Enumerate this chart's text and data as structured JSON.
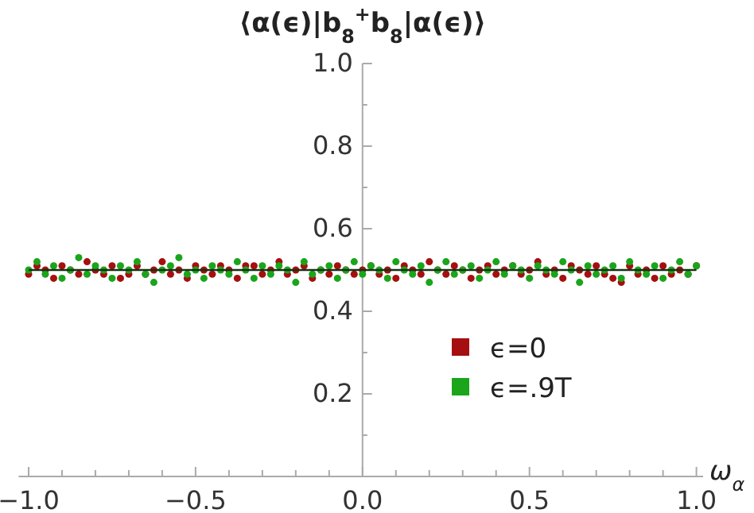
{
  "chart_data": {
    "type": "scatter",
    "ylabel": "⟨α(ϵ)|b$_{8}$$^{+}$b$_{8}$|α(ϵ)⟩",
    "xlabel": "ω$_{α}$",
    "x": [
      -1,
      -0.975,
      -0.95,
      -0.925,
      -0.9,
      -0.875,
      -0.85,
      -0.825,
      -0.8,
      -0.775,
      -0.75,
      -0.725,
      -0.7,
      -0.675,
      -0.65,
      -0.625,
      -0.6,
      -0.575,
      -0.55,
      -0.525,
      -0.5,
      -0.475,
      -0.45,
      -0.425,
      -0.4,
      -0.375,
      -0.35,
      -0.325,
      -0.3,
      -0.275,
      -0.25,
      -0.225,
      -0.2,
      -0.175,
      -0.15,
      -0.125,
      -0.1,
      -0.075,
      -0.05,
      -0.025,
      0,
      0.025,
      0.05,
      0.075,
      0.1,
      0.125,
      0.15,
      0.175,
      0.2,
      0.225,
      0.25,
      0.275,
      0.3,
      0.325,
      0.35,
      0.375,
      0.4,
      0.425,
      0.45,
      0.475,
      0.5,
      0.525,
      0.55,
      0.575,
      0.6,
      0.625,
      0.65,
      0.675,
      0.7,
      0.725,
      0.75,
      0.775,
      0.8,
      0.825,
      0.85,
      0.875,
      0.9,
      0.925,
      0.95,
      0.975,
      1
    ],
    "series": [
      {
        "name": "ϵ=0",
        "color": "#a50f0f",
        "values": [
          0.49,
          0.51,
          0.5,
          0.48,
          0.51,
          0.5,
          0.49,
          0.52,
          0.5,
          0.49,
          0.51,
          0.48,
          0.49,
          0.51,
          0.49,
          0.5,
          0.52,
          0.49,
          0.5,
          0.48,
          0.51,
          0.5,
          0.49,
          0.51,
          0.5,
          0.48,
          0.51,
          0.51,
          0.49,
          0.5,
          0.52,
          0.49,
          0.5,
          0.51,
          0.48,
          0.5,
          0.49,
          0.51,
          0.5,
          0.49,
          0.5,
          0.51,
          0.49,
          0.5,
          0.48,
          0.51,
          0.5,
          0.49,
          0.52,
          0.5,
          0.49,
          0.51,
          0.5,
          0.48,
          0.5,
          0.51,
          0.49,
          0.5,
          0.51,
          0.49,
          0.5,
          0.52,
          0.49,
          0.5,
          0.48,
          0.51,
          0.5,
          0.49,
          0.51,
          0.49,
          0.48,
          0.47,
          0.51,
          0.49,
          0.5,
          0.48,
          0.51,
          0.49,
          0.5,
          0.49,
          0.51
        ]
      },
      {
        "name": "ϵ=.9T",
        "color": "#1aa51a",
        "values": [
          0.5,
          0.52,
          0.49,
          0.51,
          0.48,
          0.5,
          0.53,
          0.49,
          0.51,
          0.5,
          0.48,
          0.51,
          0.5,
          0.52,
          0.49,
          0.47,
          0.5,
          0.51,
          0.53,
          0.49,
          0.5,
          0.48,
          0.51,
          0.5,
          0.49,
          0.52,
          0.5,
          0.48,
          0.51,
          0.49,
          0.51,
          0.5,
          0.47,
          0.52,
          0.49,
          0.5,
          0.51,
          0.48,
          0.5,
          0.52,
          0.49,
          0.51,
          0.5,
          0.48,
          0.52,
          0.5,
          0.49,
          0.51,
          0.47,
          0.5,
          0.52,
          0.49,
          0.5,
          0.51,
          0.48,
          0.5,
          0.52,
          0.49,
          0.51,
          0.5,
          0.48,
          0.51,
          0.5,
          0.49,
          0.52,
          0.5,
          0.47,
          0.51,
          0.49,
          0.5,
          0.51,
          0.48,
          0.52,
          0.5,
          0.49,
          0.51,
          0.48,
          0.5,
          0.52,
          0.49,
          0.51
        ]
      }
    ],
    "ref_lines": [
      {
        "axis": "y",
        "value": 0.5,
        "color": "#143214"
      }
    ],
    "xlim": [
      -1.03,
      1.02
    ],
    "ylim": [
      0,
      1
    ],
    "xticks": [
      {
        "value": -1,
        "label": "−1.0"
      },
      {
        "value": -0.9,
        "label": null
      },
      {
        "value": -0.8,
        "label": null
      },
      {
        "value": -0.7,
        "label": null
      },
      {
        "value": -0.6,
        "label": null
      },
      {
        "value": -0.5,
        "label": "−0.5"
      },
      {
        "value": -0.4,
        "label": null
      },
      {
        "value": -0.3,
        "label": null
      },
      {
        "value": -0.2,
        "label": null
      },
      {
        "value": -0.1,
        "label": null
      },
      {
        "value": 0,
        "label": "0.0"
      },
      {
        "value": 0.1,
        "label": null
      },
      {
        "value": 0.2,
        "label": null
      },
      {
        "value": 0.3,
        "label": null
      },
      {
        "value": 0.4,
        "label": null
      },
      {
        "value": 0.5,
        "label": "0.5"
      },
      {
        "value": 0.6,
        "label": null
      },
      {
        "value": 0.7,
        "label": null
      },
      {
        "value": 0.8,
        "label": null
      },
      {
        "value": 0.9,
        "label": null
      },
      {
        "value": 1,
        "label": "1.0"
      }
    ],
    "yticks": [
      {
        "value": 0.1,
        "label": null
      },
      {
        "value": 0.2,
        "label": "0.2"
      },
      {
        "value": 0.3,
        "label": null
      },
      {
        "value": 0.4,
        "label": "0.4"
      },
      {
        "value": 0.5,
        "label": null
      },
      {
        "value": 0.6,
        "label": "0.6"
      },
      {
        "value": 0.7,
        "label": null
      },
      {
        "value": 0.8,
        "label": "0.8"
      },
      {
        "value": 0.9,
        "label": null
      },
      {
        "value": 1,
        "label": "1.0"
      }
    ],
    "marker": "circle",
    "legend": "right",
    "grid": false
  }
}
